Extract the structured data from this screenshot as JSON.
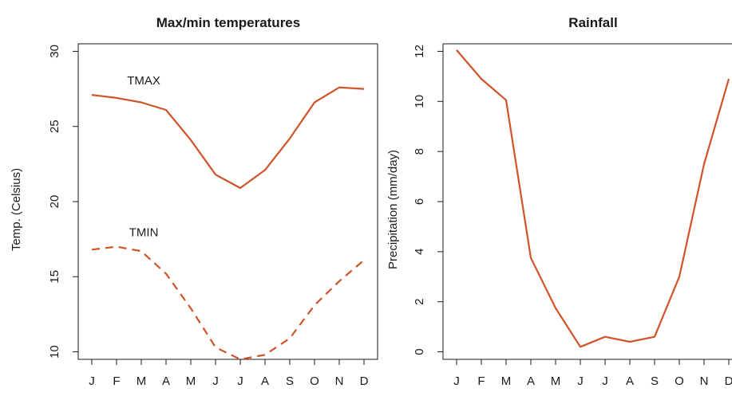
{
  "colors": {
    "series": "#d0532a",
    "axis": "#1a1a1a"
  },
  "chart_data": [
    {
      "type": "line",
      "title": "Max/min temperatures",
      "xlabel": "",
      "ylabel": "Temp. (Celsius)",
      "categories": [
        "J",
        "F",
        "M",
        "A",
        "M",
        "J",
        "J",
        "A",
        "S",
        "O",
        "N",
        "D"
      ],
      "ylim": [
        9.5,
        30.5
      ],
      "yticks": [
        10,
        15,
        20,
        25,
        30
      ],
      "series": [
        {
          "name": "TMAX",
          "style": "solid",
          "values": [
            27.1,
            26.9,
            26.6,
            26.1,
            24.1,
            21.8,
            20.9,
            22.1,
            24.2,
            26.6,
            27.6,
            27.5
          ]
        },
        {
          "name": "TMIN",
          "style": "dashed",
          "values": [
            16.8,
            17.0,
            16.7,
            15.2,
            12.9,
            10.3,
            9.5,
            9.8,
            10.9,
            13.1,
            14.7,
            16.1
          ]
        }
      ],
      "annotations": [
        {
          "text": "TMAX",
          "x": 2.1,
          "y": 27.8
        },
        {
          "text": "TMIN",
          "x": 2.1,
          "y": 17.7
        }
      ]
    },
    {
      "type": "line",
      "title": "Rainfall",
      "xlabel": "",
      "ylabel": "Precipitation (mm/day)",
      "categories": [
        "J",
        "F",
        "M",
        "A",
        "M",
        "J",
        "J",
        "A",
        "S",
        "O",
        "N",
        "D"
      ],
      "ylim": [
        -0.3,
        12.3
      ],
      "yticks": [
        0,
        2,
        4,
        6,
        8,
        10,
        12
      ],
      "series": [
        {
          "name": "",
          "style": "solid",
          "values": [
            12.05,
            10.9,
            10.05,
            3.75,
            1.75,
            0.2,
            0.6,
            0.4,
            0.6,
            3.0,
            7.5,
            10.9
          ]
        }
      ]
    }
  ]
}
